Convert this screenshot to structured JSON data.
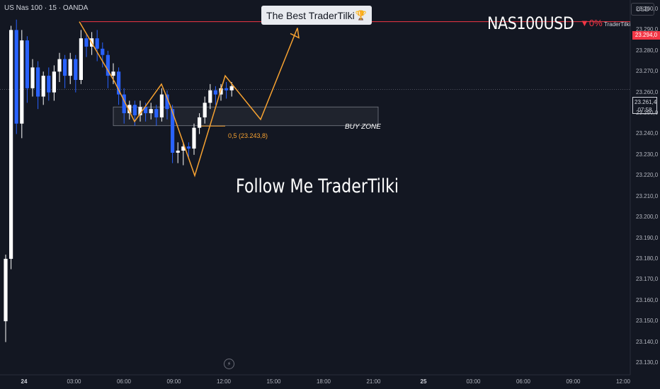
{
  "header": {
    "symbol_info": "US Nas 100 · 15 · OANDA",
    "currency": "USD"
  },
  "overlay": {
    "banner_text": "The Best TraderTilki",
    "banner_icon": "trophy-icon",
    "ticker": "NAS100USD",
    "change": "▼0%",
    "author": "TraderTilki",
    "follow_text": "Follow Me TraderTilki",
    "buy_zone_label": "BUY ZONE",
    "fib_label": "0,5 (23.243,8)"
  },
  "price_tags": {
    "resistance": "23.294,0",
    "current_price": "23.261,4",
    "countdown": "07:58"
  },
  "colors": {
    "background": "#131722",
    "bull": "#ffffff",
    "bear": "#2962ff",
    "pattern": "#f7a231",
    "resistance": "#f23645"
  },
  "chart_data": {
    "type": "candlestick",
    "y_axis": {
      "ticks": [
        "23.300,0",
        "23.290,0",
        "23.280,0",
        "23.270,0",
        "23.260,0",
        "23.250,0",
        "23.240,0",
        "23.230,0",
        "23.220,0",
        "23.210,0",
        "23.200,0",
        "23.190,0",
        "23.180,0",
        "23.170,0",
        "23.160,0",
        "23.150,0",
        "23.140,0",
        "23.130,0"
      ],
      "range": [
        23127,
        23303
      ]
    },
    "x_axis": {
      "ticks": [
        "24",
        "03:00",
        "06:00",
        "09:00",
        "12:00",
        "15:00",
        "18:00",
        "21:00",
        "25",
        "03:00",
        "06:00",
        "09:00",
        "12:00"
      ]
    },
    "resistance_level": 23294.0,
    "current_level": 23261.4,
    "buy_zone": [
      23244,
      23253
    ],
    "fib_level": 23243.8,
    "candles": [
      [
        23150,
        23180,
        23140,
        23182
      ],
      [
        23180,
        23290,
        23175,
        23292
      ],
      [
        23290,
        23245,
        23240,
        23295
      ],
      [
        23245,
        23285,
        23238,
        23290
      ],
      [
        23285,
        23262,
        23255,
        23287
      ],
      [
        23262,
        23272,
        23258,
        23276
      ],
      [
        23272,
        23258,
        23252,
        23275
      ],
      [
        23258,
        23268,
        23254,
        23270
      ],
      [
        23268,
        23260,
        23256,
        23272
      ],
      [
        23260,
        23270,
        23256,
        23273
      ],
      [
        23270,
        23276,
        23265,
        23279
      ],
      [
        23276,
        23268,
        23262,
        23278
      ],
      [
        23268,
        23276,
        23264,
        23279
      ],
      [
        23276,
        23266,
        23260,
        23278
      ],
      [
        23266,
        23286,
        23264,
        23290
      ],
      [
        23286,
        23282,
        23277,
        23288
      ],
      [
        23282,
        23286,
        23278,
        23289
      ],
      [
        23286,
        23281,
        23275,
        23290
      ],
      [
        23281,
        23278,
        23272,
        23284
      ],
      [
        23278,
        23268,
        23262,
        23280
      ],
      [
        23268,
        23270,
        23264,
        23274
      ],
      [
        23270,
        23259,
        23254,
        23272
      ],
      [
        23259,
        23250,
        23245,
        23262
      ],
      [
        23250,
        23254,
        23247,
        23256
      ],
      [
        23254,
        23249,
        23244,
        23256
      ],
      [
        23249,
        23253,
        23246,
        23256
      ],
      [
        23253,
        23250,
        23246,
        23255
      ],
      [
        23250,
        23252,
        23247,
        23255
      ],
      [
        23252,
        23248,
        23244,
        23254
      ],
      [
        23248,
        23259,
        23246,
        23262
      ],
      [
        23259,
        23252,
        23247,
        23261
      ],
      [
        23252,
        23231,
        23226,
        23254
      ],
      [
        23231,
        23232,
        23226,
        23236
      ],
      [
        23232,
        23234,
        23225,
        23236
      ],
      [
        23234,
        23233,
        23229,
        23236
      ],
      [
        23233,
        23243,
        23230,
        23245
      ],
      [
        23243,
        23248,
        23240,
        23250
      ],
      [
        23248,
        23255,
        23245,
        23258
      ],
      [
        23255,
        23261,
        23252,
        23264
      ],
      [
        23261,
        23259,
        23254,
        23263
      ],
      [
        23259,
        23262,
        23256,
        23264
      ],
      [
        23262,
        23261,
        23257,
        23265
      ],
      [
        23261,
        23263,
        23258,
        23265
      ]
    ],
    "pattern_points": [
      [
        4,
        23294
      ],
      [
        9,
        23246
      ],
      [
        11,
        23264
      ],
      [
        14,
        23254
      ],
      [
        17,
        23220
      ],
      [
        22,
        23268
      ],
      [
        29,
        23247
      ],
      [
        35,
        23291
      ]
    ]
  }
}
